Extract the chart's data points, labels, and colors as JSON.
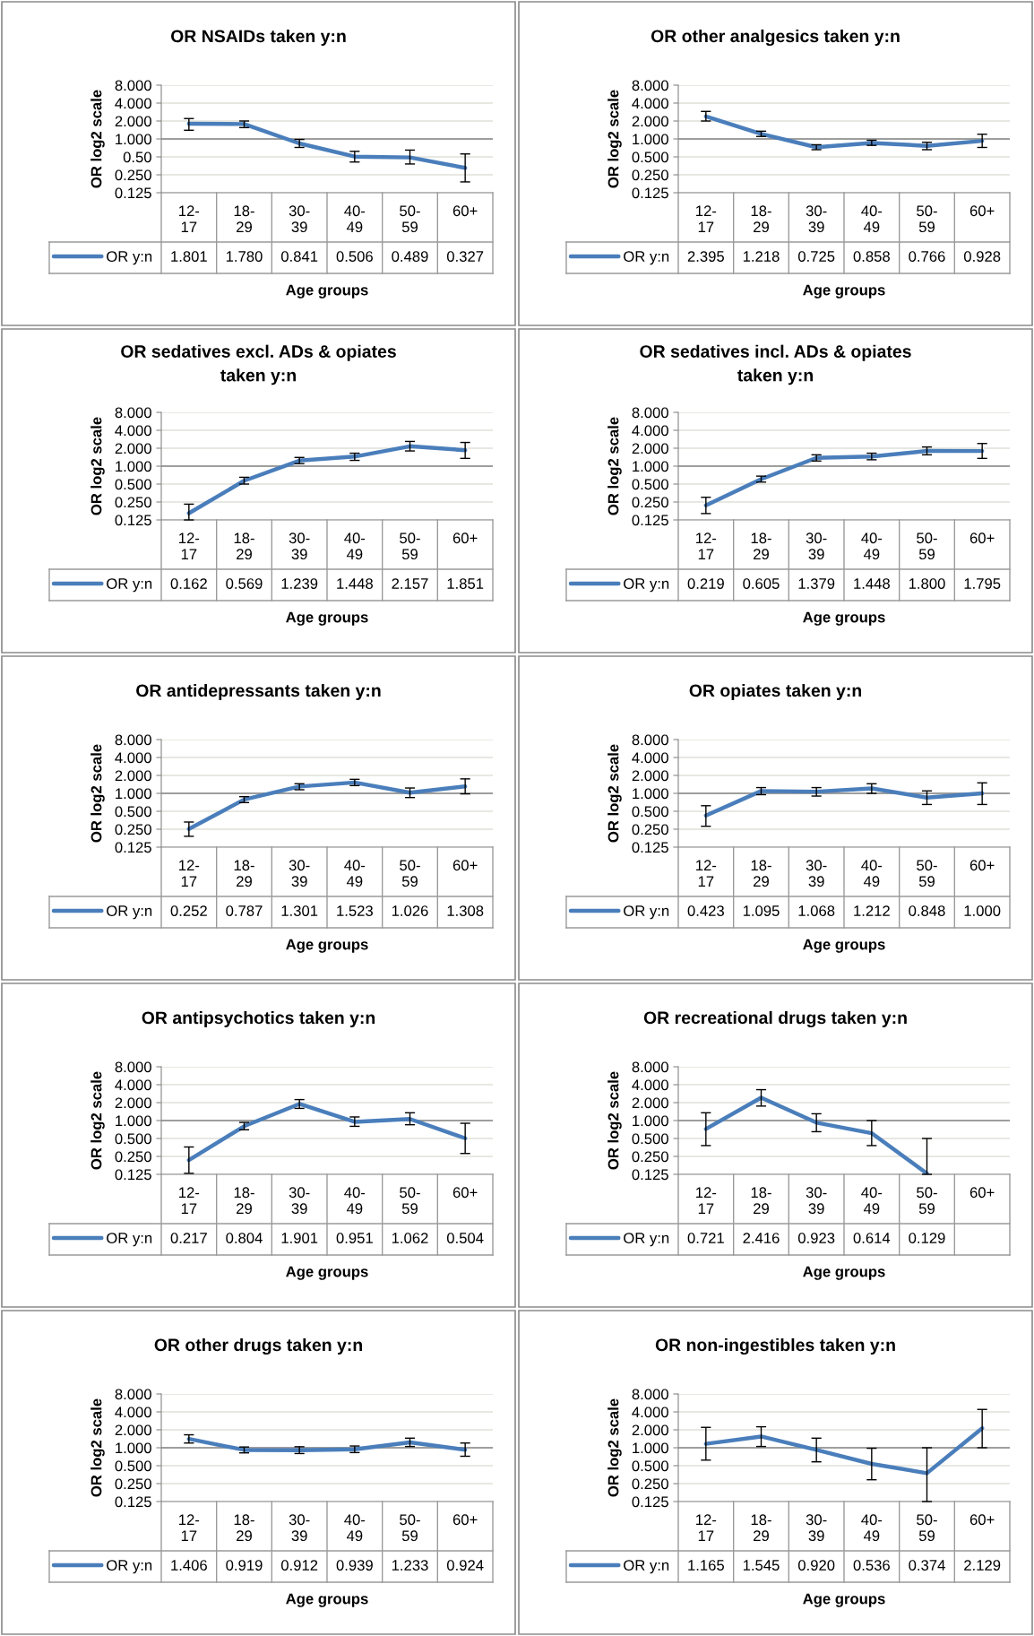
{
  "chart_data": [
    {
      "type": "line",
      "title": "OR NSAIDs taken y:n",
      "ylabel": "OR log2 scale",
      "xlabel": "Age groups",
      "categories": [
        "12-17",
        "18-29",
        "30-39",
        "40-49",
        "50-59",
        "60+"
      ],
      "log": "y",
      "grid": "y",
      "legend": "bottom",
      "ylim": [
        0.125,
        8
      ],
      "yticks": [
        {
          "value": 8,
          "label": "8.000"
        },
        {
          "value": 4,
          "label": "4.000"
        },
        {
          "value": 2,
          "label": "2.000"
        },
        {
          "value": 1,
          "label": "1.000"
        },
        {
          "value": 0.5,
          "label": "0.50"
        },
        {
          "value": 0.25,
          "label": "0.250"
        },
        {
          "value": 0.125,
          "label": "0.125"
        }
      ],
      "ref_lines": [
        {
          "axis": "y",
          "value": 1,
          "color": "#868686"
        }
      ],
      "series": [
        {
          "name": "OR y:n",
          "color": "#4a7ebb",
          "values": [
            1.801,
            1.78,
            0.841,
            0.506,
            0.489,
            0.327
          ],
          "value_labels": [
            "1.801",
            "1.780",
            "0.841",
            "0.506",
            "0.489",
            "0.327"
          ],
          "errors": [
            [
              1.4,
              2.2
            ],
            [
              1.55,
              2.0
            ],
            [
              0.72,
              0.98
            ],
            [
              0.41,
              0.62
            ],
            [
              0.38,
              0.65
            ],
            [
              0.19,
              0.56
            ]
          ]
        }
      ]
    },
    {
      "type": "line",
      "title": "OR other analgesics taken y:n",
      "ylabel": "OR log2 scale",
      "xlabel": "Age groups",
      "categories": [
        "12-17",
        "18-29",
        "30-39",
        "40-49",
        "50-59",
        "60+"
      ],
      "log": "y",
      "grid": "y",
      "legend": "bottom",
      "ylim": [
        0.125,
        8
      ],
      "yticks": [
        {
          "value": 8,
          "label": "8.000"
        },
        {
          "value": 4,
          "label": "4.000"
        },
        {
          "value": 2,
          "label": "2.000"
        },
        {
          "value": 1,
          "label": "1.000"
        },
        {
          "value": 0.5,
          "label": "0.500"
        },
        {
          "value": 0.25,
          "label": "0.250"
        },
        {
          "value": 0.125,
          "label": "0.125"
        }
      ],
      "ref_lines": [
        {
          "axis": "y",
          "value": 1,
          "color": "#868686"
        }
      ],
      "series": [
        {
          "name": "OR y:n",
          "color": "#4a7ebb",
          "values": [
            2.395,
            1.218,
            0.725,
            0.858,
            0.766,
            0.928
          ],
          "value_labels": [
            "2.395",
            "1.218",
            "0.725",
            "0.858",
            "0.766",
            "0.928"
          ],
          "errors": [
            [
              2.0,
              2.9
            ],
            [
              1.1,
              1.35
            ],
            [
              0.66,
              0.8
            ],
            [
              0.78,
              0.95
            ],
            [
              0.66,
              0.88
            ],
            [
              0.72,
              1.2
            ]
          ]
        }
      ]
    },
    {
      "type": "line",
      "title": "OR sedatives excl. ADs & opiates taken y:n",
      "ylabel": "OR log2 scale",
      "xlabel": "Age groups",
      "categories": [
        "12-17",
        "18-29",
        "30-39",
        "40-49",
        "50-59",
        "60+"
      ],
      "log": "y",
      "grid": "y",
      "legend": "bottom",
      "ylim": [
        0.125,
        8
      ],
      "yticks": [
        {
          "value": 8,
          "label": "8.000"
        },
        {
          "value": 4,
          "label": "4.000"
        },
        {
          "value": 2,
          "label": "2.000"
        },
        {
          "value": 1,
          "label": "1.000"
        },
        {
          "value": 0.5,
          "label": "0.500"
        },
        {
          "value": 0.25,
          "label": "0.250"
        },
        {
          "value": 0.125,
          "label": "0.125"
        }
      ],
      "ref_lines": [
        {
          "axis": "y",
          "value": 1,
          "color": "#868686"
        }
      ],
      "series": [
        {
          "name": "OR y:n",
          "color": "#4a7ebb",
          "values": [
            0.162,
            0.569,
            1.239,
            1.448,
            2.157,
            1.851
          ],
          "value_labels": [
            "0.162",
            "0.569",
            "1.239",
            "1.448",
            "2.157",
            "1.851"
          ],
          "errors": [
            [
              0.125,
              0.23
            ],
            [
              0.5,
              0.65
            ],
            [
              1.1,
              1.4
            ],
            [
              1.25,
              1.65
            ],
            [
              1.8,
              2.6
            ],
            [
              1.35,
              2.5
            ]
          ]
        }
      ]
    },
    {
      "type": "line",
      "title": "OR sedatives incl. ADs & opiates taken y:n",
      "ylabel": "OR log2 scale",
      "xlabel": "Age groups",
      "categories": [
        "12-17",
        "18-29",
        "30-39",
        "40-49",
        "50-59",
        "60+"
      ],
      "log": "y",
      "grid": "y",
      "legend": "bottom",
      "ylim": [
        0.125,
        8
      ],
      "yticks": [
        {
          "value": 8,
          "label": "8.000"
        },
        {
          "value": 4,
          "label": "4.000"
        },
        {
          "value": 2,
          "label": "2.000"
        },
        {
          "value": 1,
          "label": "1.000"
        },
        {
          "value": 0.5,
          "label": "0.500"
        },
        {
          "value": 0.25,
          "label": "0.250"
        },
        {
          "value": 0.125,
          "label": "0.125"
        }
      ],
      "ref_lines": [
        {
          "axis": "y",
          "value": 1,
          "color": "#868686"
        }
      ],
      "series": [
        {
          "name": "OR y:n",
          "color": "#4a7ebb",
          "values": [
            0.219,
            0.605,
            1.379,
            1.448,
            1.8,
            1.795
          ],
          "value_labels": [
            "0.219",
            "0.605",
            "1.379",
            "1.448",
            "1.800",
            "1.795"
          ],
          "errors": [
            [
              0.16,
              0.3
            ],
            [
              0.54,
              0.68
            ],
            [
              1.22,
              1.55
            ],
            [
              1.28,
              1.65
            ],
            [
              1.55,
              2.1
            ],
            [
              1.35,
              2.4
            ]
          ]
        }
      ]
    },
    {
      "type": "line",
      "title": "OR antidepressants taken y:n",
      "ylabel": "OR log2 scale",
      "xlabel": "Age groups",
      "categories": [
        "12-17",
        "18-29",
        "30-39",
        "40-49",
        "50-59",
        "60+"
      ],
      "log": "y",
      "grid": "y",
      "legend": "bottom",
      "ylim": [
        0.125,
        8
      ],
      "yticks": [
        {
          "value": 8,
          "label": "8.000"
        },
        {
          "value": 4,
          "label": "4.000"
        },
        {
          "value": 2,
          "label": "2.000"
        },
        {
          "value": 1,
          "label": "1.000"
        },
        {
          "value": 0.5,
          "label": "0.500"
        },
        {
          "value": 0.25,
          "label": "0.250"
        },
        {
          "value": 0.125,
          "label": "0.125"
        }
      ],
      "ref_lines": [
        {
          "axis": "y",
          "value": 1,
          "color": "#868686"
        }
      ],
      "series": [
        {
          "name": "OR y:n",
          "color": "#4a7ebb",
          "values": [
            0.252,
            0.787,
            1.301,
            1.523,
            1.026,
            1.308
          ],
          "value_labels": [
            "0.252",
            "0.787",
            "1.301",
            "1.523",
            "1.026",
            "1.308"
          ],
          "errors": [
            [
              0.19,
              0.33
            ],
            [
              0.7,
              0.88
            ],
            [
              1.15,
              1.45
            ],
            [
              1.35,
              1.72
            ],
            [
              0.85,
              1.23
            ],
            [
              0.98,
              1.75
            ]
          ]
        }
      ]
    },
    {
      "type": "line",
      "title": "OR opiates taken y:n",
      "ylabel": "OR log2 scale",
      "xlabel": "Age groups",
      "categories": [
        "12-17",
        "18-29",
        "30-39",
        "40-49",
        "50-59",
        "60+"
      ],
      "log": "y",
      "grid": "y",
      "legend": "bottom",
      "ylim": [
        0.125,
        8
      ],
      "yticks": [
        {
          "value": 8,
          "label": "8.000"
        },
        {
          "value": 4,
          "label": "4.000"
        },
        {
          "value": 2,
          "label": "2.000"
        },
        {
          "value": 1,
          "label": "1.000"
        },
        {
          "value": 0.5,
          "label": "0.500"
        },
        {
          "value": 0.25,
          "label": "0.250"
        },
        {
          "value": 0.125,
          "label": "0.125"
        }
      ],
      "ref_lines": [
        {
          "axis": "y",
          "value": 1,
          "color": "#868686"
        }
      ],
      "series": [
        {
          "name": "OR y:n",
          "color": "#4a7ebb",
          "values": [
            0.423,
            1.095,
            1.068,
            1.212,
            0.848,
            1.0
          ],
          "value_labels": [
            "0.423",
            "1.095",
            "1.068",
            "1.212",
            "0.848",
            "1.000"
          ],
          "errors": [
            [
              0.28,
              0.62
            ],
            [
              0.95,
              1.25
            ],
            [
              0.9,
              1.25
            ],
            [
              1.0,
              1.45
            ],
            [
              0.65,
              1.1
            ],
            [
              0.65,
              1.5
            ]
          ]
        }
      ]
    },
    {
      "type": "line",
      "title": "OR antipsychotics taken y:n",
      "ylabel": "OR log2 scale",
      "xlabel": "Age groups",
      "categories": [
        "12-17",
        "18-29",
        "30-39",
        "40-49",
        "50-59",
        "60+"
      ],
      "log": "y",
      "grid": "y",
      "legend": "bottom",
      "ylim": [
        0.125,
        8
      ],
      "yticks": [
        {
          "value": 8,
          "label": "8.000"
        },
        {
          "value": 4,
          "label": "4.000"
        },
        {
          "value": 2,
          "label": "2.000"
        },
        {
          "value": 1,
          "label": "1.000"
        },
        {
          "value": 0.5,
          "label": "0.500"
        },
        {
          "value": 0.25,
          "label": "0.250"
        },
        {
          "value": 0.125,
          "label": "0.125"
        }
      ],
      "ref_lines": [
        {
          "axis": "y",
          "value": 1,
          "color": "#868686"
        }
      ],
      "series": [
        {
          "name": "OR y:n",
          "color": "#4a7ebb",
          "values": [
            0.217,
            0.804,
            1.901,
            0.951,
            1.062,
            0.504
          ],
          "value_labels": [
            "0.217",
            "0.804",
            "1.901",
            "0.951",
            "1.062",
            "0.504"
          ],
          "errors": [
            [
              0.13,
              0.36
            ],
            [
              0.7,
              0.93
            ],
            [
              1.6,
              2.25
            ],
            [
              0.8,
              1.15
            ],
            [
              0.85,
              1.35
            ],
            [
              0.28,
              0.9
            ]
          ]
        }
      ]
    },
    {
      "type": "line",
      "title": "OR recreational drugs taken y:n",
      "ylabel": "OR log2 scale",
      "xlabel": "Age groups",
      "categories": [
        "12-17",
        "18-29",
        "30-39",
        "40-49",
        "50-59",
        "60+"
      ],
      "log": "y",
      "grid": "y",
      "legend": "bottom",
      "ylim": [
        0.125,
        8
      ],
      "yticks": [
        {
          "value": 8,
          "label": "8.000"
        },
        {
          "value": 4,
          "label": "4.000"
        },
        {
          "value": 2,
          "label": "2.000"
        },
        {
          "value": 1,
          "label": "1.000"
        },
        {
          "value": 0.5,
          "label": "0.500"
        },
        {
          "value": 0.25,
          "label": "0.250"
        },
        {
          "value": 0.125,
          "label": "0.125"
        }
      ],
      "ref_lines": [
        {
          "axis": "y",
          "value": 1,
          "color": "#868686"
        }
      ],
      "series": [
        {
          "name": "OR y:n",
          "color": "#4a7ebb",
          "values": [
            0.721,
            2.416,
            0.923,
            0.614,
            0.129,
            null
          ],
          "value_labels": [
            "0.721",
            "2.416",
            "0.923",
            "0.614",
            "0.129",
            null
          ],
          "errors": [
            [
              0.38,
              1.35
            ],
            [
              1.75,
              3.3
            ],
            [
              0.65,
              1.3
            ],
            [
              0.38,
              1.0
            ],
            [
              0.125,
              0.5
            ],
            null
          ]
        }
      ]
    },
    {
      "type": "line",
      "title": "OR other drugs taken y:n",
      "ylabel": "OR log2 scale",
      "xlabel": "Age groups",
      "categories": [
        "12-17",
        "18-29",
        "30-39",
        "40-49",
        "50-59",
        "60+"
      ],
      "log": "y",
      "grid": "y",
      "legend": "bottom",
      "ylim": [
        0.125,
        8
      ],
      "yticks": [
        {
          "value": 8,
          "label": "8.000"
        },
        {
          "value": 4,
          "label": "4.000"
        },
        {
          "value": 2,
          "label": "2.000"
        },
        {
          "value": 1,
          "label": "1.000"
        },
        {
          "value": 0.5,
          "label": "0.500"
        },
        {
          "value": 0.25,
          "label": "0.250"
        },
        {
          "value": 0.125,
          "label": "0.125"
        }
      ],
      "ref_lines": [
        {
          "axis": "y",
          "value": 1,
          "color": "#868686"
        }
      ],
      "series": [
        {
          "name": "OR y:n",
          "color": "#4a7ebb",
          "values": [
            1.406,
            0.919,
            0.912,
            0.939,
            1.233,
            0.924
          ],
          "value_labels": [
            "1.406",
            "0.919",
            "0.912",
            "0.939",
            "1.233",
            "0.924"
          ],
          "errors": [
            [
              1.2,
              1.65
            ],
            [
              0.82,
              1.03
            ],
            [
              0.8,
              1.04
            ],
            [
              0.83,
              1.07
            ],
            [
              1.05,
              1.45
            ],
            [
              0.72,
              1.2
            ]
          ]
        }
      ]
    },
    {
      "type": "line",
      "title": "OR non-ingestibles taken y:n",
      "ylabel": "OR log2 scale",
      "xlabel": "Age groups",
      "categories": [
        "12-17",
        "18-29",
        "30-39",
        "40-49",
        "50-59",
        "60+"
      ],
      "log": "y",
      "grid": "y",
      "legend": "bottom",
      "ylim": [
        0.125,
        8
      ],
      "yticks": [
        {
          "value": 8,
          "label": "8.000"
        },
        {
          "value": 4,
          "label": "4.000"
        },
        {
          "value": 2,
          "label": "2.000"
        },
        {
          "value": 1,
          "label": "1.000"
        },
        {
          "value": 0.5,
          "label": "0.500"
        },
        {
          "value": 0.25,
          "label": "0.250"
        },
        {
          "value": 0.125,
          "label": "0.125"
        }
      ],
      "ref_lines": [
        {
          "axis": "y",
          "value": 1,
          "color": "#868686"
        }
      ],
      "series": [
        {
          "name": "OR y:n",
          "color": "#4a7ebb",
          "values": [
            1.165,
            1.545,
            0.92,
            0.536,
            0.374,
            2.129
          ],
          "value_labels": [
            "1.165",
            "1.545",
            "0.920",
            "0.536",
            "0.374",
            "2.129"
          ],
          "errors": [
            [
              0.62,
              2.2
            ],
            [
              1.05,
              2.25
            ],
            [
              0.58,
              1.45
            ],
            [
              0.29,
              0.98
            ],
            [
              0.125,
              1.0
            ],
            [
              1.0,
              4.4
            ]
          ]
        }
      ]
    }
  ]
}
